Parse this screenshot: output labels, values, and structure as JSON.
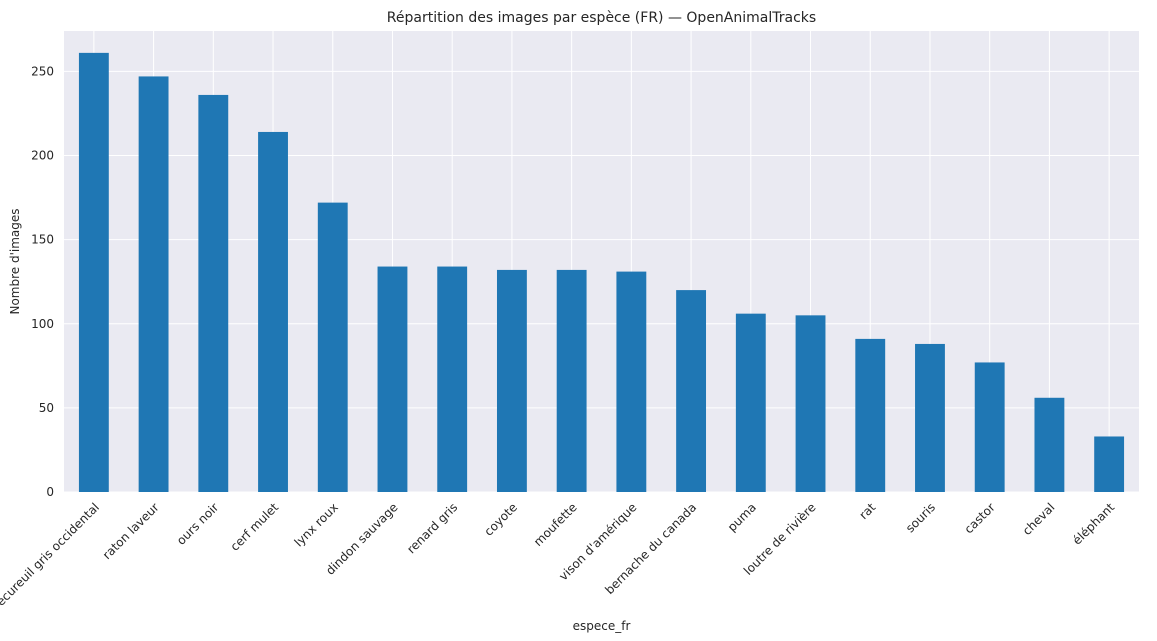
{
  "chart_data": {
    "type": "bar",
    "title": "Répartition des images par espèce (FR) — OpenAnimalTracks",
    "xlabel": "espece_fr",
    "ylabel": "Nombre d'images",
    "categories": [
      "écureuil gris occidental",
      "raton laveur",
      "ours noir",
      "cerf mulet",
      "lynx roux",
      "dindon sauvage",
      "renard gris",
      "coyote",
      "moufette",
      "vison d'amérique",
      "bernache du canada",
      "puma",
      "loutre de rivière",
      "rat",
      "souris",
      "castor",
      "cheval",
      "éléphant"
    ],
    "values": [
      261,
      247,
      236,
      214,
      172,
      134,
      134,
      132,
      132,
      131,
      120,
      106,
      105,
      91,
      88,
      77,
      56,
      33
    ],
    "yticks": [
      0,
      50,
      100,
      150,
      200,
      250
    ],
    "ylim": [
      0,
      274
    ],
    "bar_color": "#1f77b4",
    "background_color": "#eaeaf2",
    "grid": true
  }
}
